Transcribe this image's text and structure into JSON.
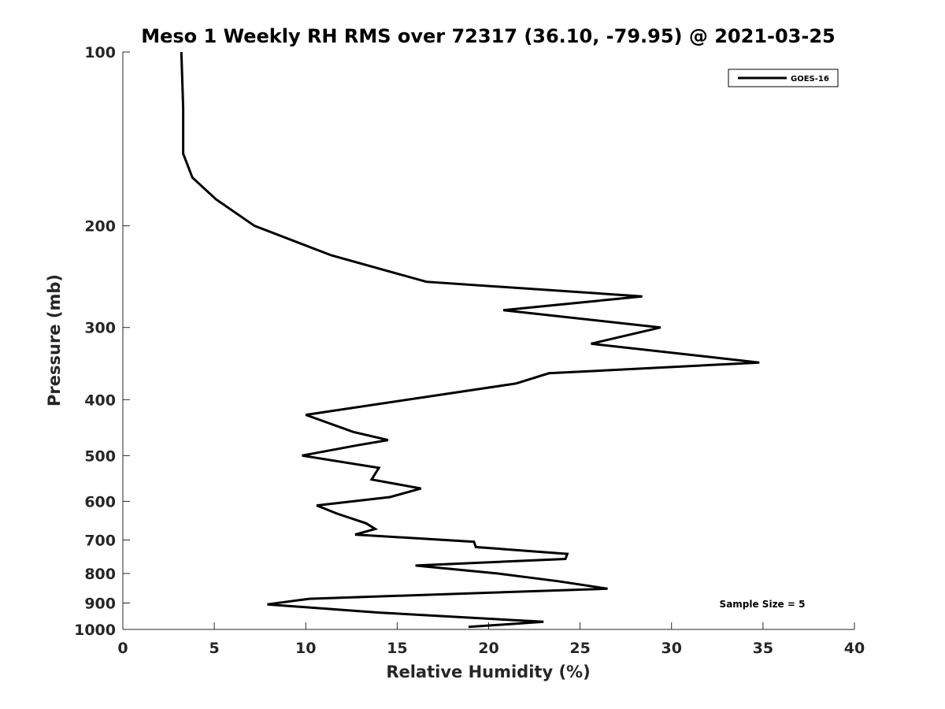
{
  "chart_data": {
    "type": "line",
    "title": "Meso 1 Weekly RH RMS over 72317 (36.10, -79.95) @ 2021-03-25",
    "xlabel": "Relative Humidity (%)",
    "ylabel": "Pressure (mb)",
    "xlim": [
      0,
      40
    ],
    "ylim": [
      100,
      1000
    ],
    "y_scale": "log",
    "y_reversed": true,
    "x_ticks": [
      0,
      5,
      10,
      15,
      20,
      25,
      30,
      35,
      40
    ],
    "y_ticks": [
      100,
      200,
      300,
      400,
      500,
      600,
      700,
      800,
      900,
      1000
    ],
    "grid": false,
    "legend_position": "top-right",
    "annotation": "Sample Size = 5",
    "series": [
      {
        "name": "GOES-16",
        "color": "#000000",
        "points": [
          [
            3.2,
            100
          ],
          [
            3.3,
            125
          ],
          [
            3.3,
            150
          ],
          [
            3.8,
            165
          ],
          [
            5.1,
            180
          ],
          [
            7.2,
            200
          ],
          [
            11.4,
            225
          ],
          [
            16.6,
            250
          ],
          [
            28.4,
            265
          ],
          [
            20.8,
            280
          ],
          [
            29.4,
            300
          ],
          [
            25.6,
            320
          ],
          [
            34.8,
            345
          ],
          [
            23.3,
            360
          ],
          [
            21.5,
            375
          ],
          [
            10.0,
            425
          ],
          [
            12.6,
            455
          ],
          [
            14.5,
            470
          ],
          [
            12.8,
            480
          ],
          [
            9.8,
            500
          ],
          [
            14.0,
            525
          ],
          [
            13.6,
            550
          ],
          [
            16.3,
            570
          ],
          [
            14.6,
            590
          ],
          [
            10.6,
            610
          ],
          [
            11.7,
            630
          ],
          [
            13.3,
            655
          ],
          [
            13.8,
            670
          ],
          [
            12.7,
            685
          ],
          [
            19.2,
            705
          ],
          [
            19.3,
            720
          ],
          [
            24.3,
            740
          ],
          [
            24.2,
            755
          ],
          [
            16.0,
            775
          ],
          [
            20.5,
            800
          ],
          [
            23.8,
            825
          ],
          [
            26.5,
            850
          ],
          [
            10.2,
            885
          ],
          [
            7.9,
            905
          ],
          [
            14.0,
            935
          ],
          [
            23.0,
            970
          ],
          [
            18.9,
            990
          ]
        ]
      }
    ]
  }
}
